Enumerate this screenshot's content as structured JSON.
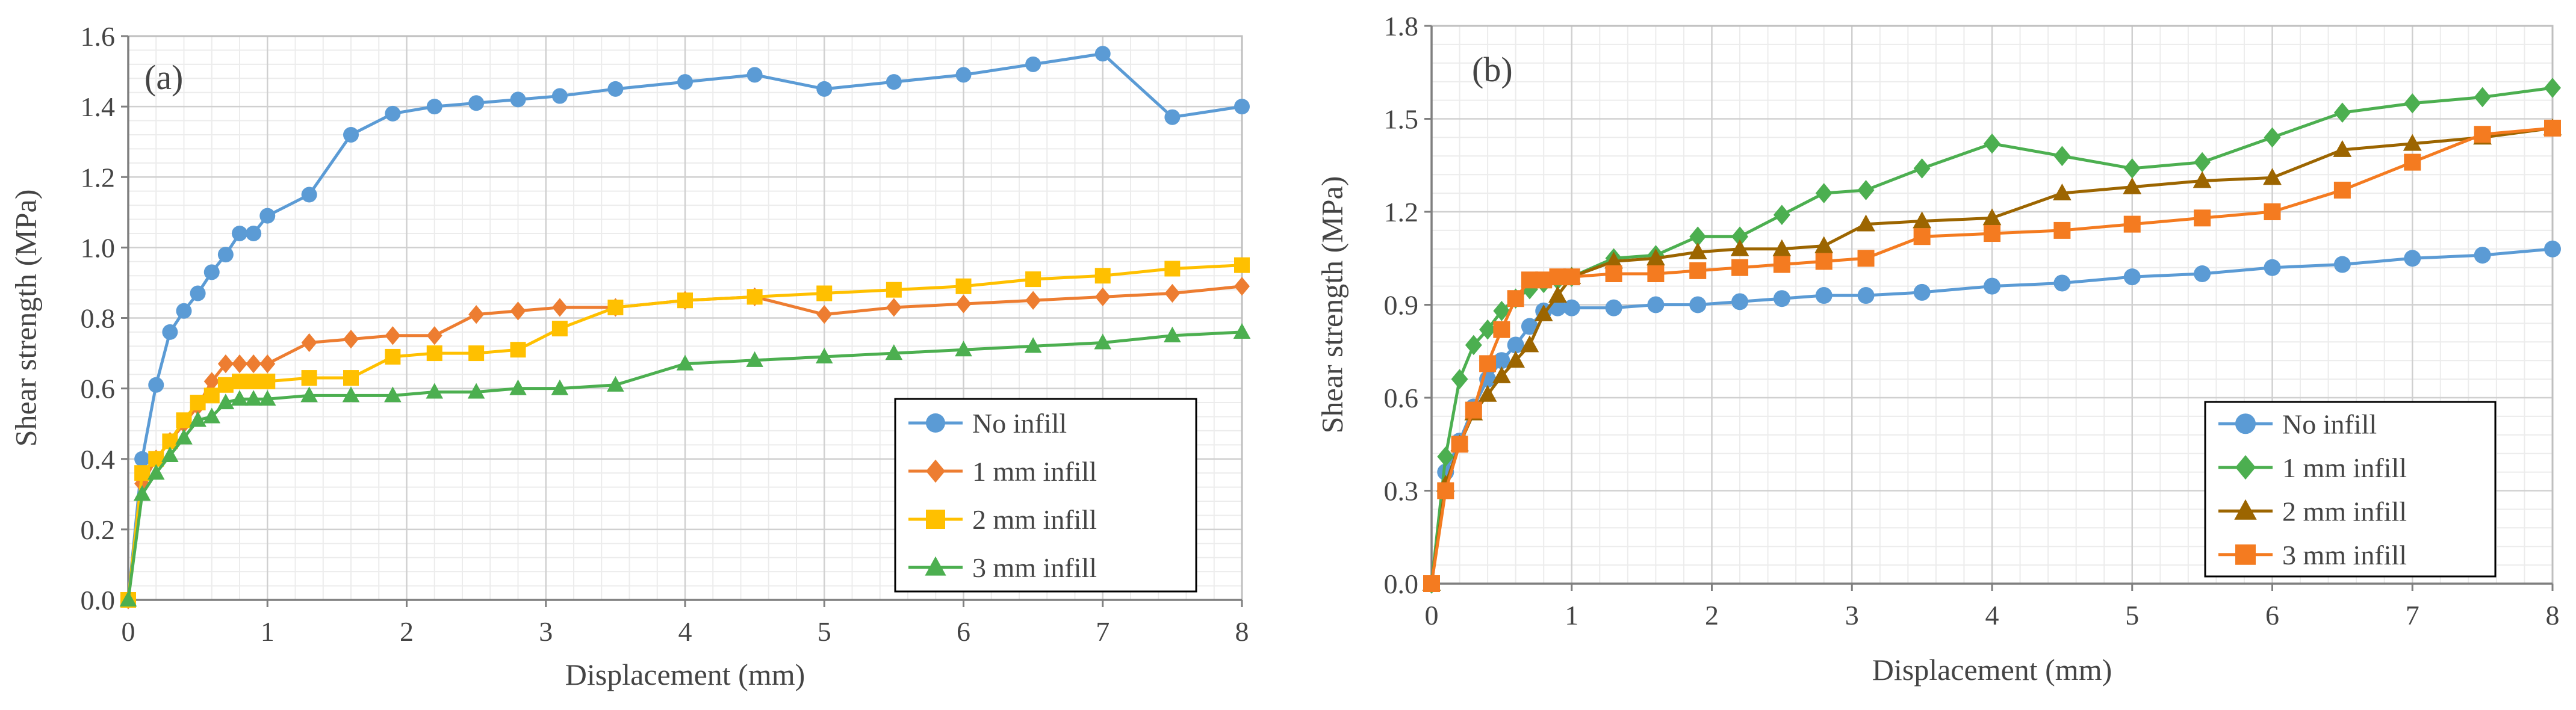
{
  "chart_data": [
    {
      "type": "line",
      "panel_label": "(a)",
      "xlabel": "Displacement (mm)",
      "ylabel": "Shear strength (MPa)",
      "xlim": [
        0,
        8
      ],
      "ylim": [
        0,
        1.6
      ],
      "xticks": [
        "0",
        "1",
        "2",
        "3",
        "4",
        "5",
        "6",
        "7",
        "8"
      ],
      "yticks": [
        "0.0",
        "0.2",
        "0.4",
        "0.6",
        "0.8",
        "1.0",
        "1.2",
        "1.4",
        "1.6"
      ],
      "grid": true,
      "legend_position": "bottom-right",
      "series": [
        {
          "name": "No infill",
          "color": "#5B9BD5",
          "marker": "circle",
          "x": [
            0,
            0.1,
            0.2,
            0.3,
            0.4,
            0.5,
            0.6,
            0.7,
            0.8,
            0.9,
            1.0,
            1.3,
            1.6,
            1.9,
            2.2,
            2.5,
            2.8,
            3.1,
            3.5,
            4.0,
            4.5,
            5.0,
            5.5,
            6.0,
            6.5,
            7.0,
            7.5,
            8.0
          ],
          "y": [
            0,
            0.4,
            0.61,
            0.76,
            0.82,
            0.87,
            0.93,
            0.98,
            1.04,
            1.04,
            1.09,
            1.15,
            1.32,
            1.38,
            1.4,
            1.41,
            1.42,
            1.43,
            1.45,
            1.47,
            1.49,
            1.45,
            1.47,
            1.49,
            1.52,
            1.55,
            1.37,
            1.4
          ]
        },
        {
          "name": "1 mm infill",
          "color": "#ED7D31",
          "marker": "diamond",
          "x": [
            0,
            0.1,
            0.2,
            0.3,
            0.4,
            0.5,
            0.6,
            0.7,
            0.8,
            0.9,
            1.0,
            1.3,
            1.6,
            1.9,
            2.2,
            2.5,
            2.8,
            3.1,
            3.5,
            4.0,
            4.5,
            5.0,
            5.5,
            6.0,
            6.5,
            7.0,
            7.5,
            8.0
          ],
          "y": [
            0,
            0.33,
            0.4,
            0.45,
            0.5,
            0.55,
            0.62,
            0.67,
            0.67,
            0.67,
            0.67,
            0.73,
            0.74,
            0.75,
            0.75,
            0.81,
            0.82,
            0.83,
            0.83,
            0.85,
            0.86,
            0.81,
            0.83,
            0.84,
            0.85,
            0.86,
            0.87,
            0.89
          ]
        },
        {
          "name": "2 mm infill",
          "color": "#FFC000",
          "marker": "square",
          "x": [
            0,
            0.1,
            0.2,
            0.3,
            0.4,
            0.5,
            0.6,
            0.7,
            0.8,
            0.9,
            1.0,
            1.3,
            1.6,
            1.9,
            2.2,
            2.5,
            2.8,
            3.1,
            3.5,
            4.0,
            4.5,
            5.0,
            5.5,
            6.0,
            6.5,
            7.0,
            7.5,
            8.0
          ],
          "y": [
            0,
            0.36,
            0.4,
            0.45,
            0.51,
            0.56,
            0.58,
            0.61,
            0.62,
            0.62,
            0.62,
            0.63,
            0.63,
            0.69,
            0.7,
            0.7,
            0.71,
            0.77,
            0.83,
            0.85,
            0.86,
            0.87,
            0.88,
            0.89,
            0.91,
            0.92,
            0.94,
            0.95
          ]
        },
        {
          "name": "3 mm infill",
          "color": "#4CAF50",
          "marker": "triangle",
          "x": [
            0,
            0.1,
            0.2,
            0.3,
            0.4,
            0.5,
            0.6,
            0.7,
            0.8,
            0.9,
            1.0,
            1.3,
            1.6,
            1.9,
            2.2,
            2.5,
            2.8,
            3.1,
            3.5,
            4.0,
            4.5,
            5.0,
            5.5,
            6.0,
            6.5,
            7.0,
            7.5,
            8.0
          ],
          "y": [
            0,
            0.3,
            0.36,
            0.41,
            0.46,
            0.51,
            0.52,
            0.56,
            0.57,
            0.57,
            0.57,
            0.58,
            0.58,
            0.58,
            0.59,
            0.59,
            0.6,
            0.6,
            0.61,
            0.67,
            0.68,
            0.69,
            0.7,
            0.71,
            0.72,
            0.73,
            0.75,
            0.76
          ]
        }
      ]
    },
    {
      "type": "line",
      "panel_label": "(b)",
      "xlabel": "Displacement (mm)",
      "ylabel": "Shear strength (MPa)",
      "xlim": [
        0,
        8
      ],
      "ylim": [
        0,
        1.8
      ],
      "xticks": [
        "0",
        "1",
        "2",
        "3",
        "4",
        "5",
        "6",
        "7",
        "8"
      ],
      "yticks": [
        "0.0",
        "0.3",
        "0.6",
        "0.9",
        "1.2",
        "1.5",
        "1.8"
      ],
      "grid": true,
      "legend_position": "bottom-right",
      "series": [
        {
          "name": "No infill",
          "color": "#5B9BD5",
          "marker": "circle",
          "x": [
            0,
            0.1,
            0.2,
            0.3,
            0.4,
            0.5,
            0.6,
            0.7,
            0.8,
            0.9,
            1.0,
            1.3,
            1.6,
            1.9,
            2.2,
            2.5,
            2.8,
            3.1,
            3.5,
            4.0,
            4.5,
            5.0,
            5.5,
            6.0,
            6.5,
            7.0,
            7.5,
            8.0
          ],
          "y": [
            0,
            0.36,
            0.46,
            0.57,
            0.66,
            0.72,
            0.77,
            0.83,
            0.88,
            0.89,
            0.89,
            0.89,
            0.9,
            0.9,
            0.91,
            0.92,
            0.93,
            0.93,
            0.94,
            0.96,
            0.97,
            0.99,
            1.0,
            1.02,
            1.03,
            1.05,
            1.06,
            1.08
          ]
        },
        {
          "name": "1 mm infill",
          "color": "#4CAF50",
          "marker": "diamond",
          "x": [
            0,
            0.1,
            0.2,
            0.3,
            0.4,
            0.5,
            0.6,
            0.7,
            0.8,
            0.9,
            1.0,
            1.3,
            1.6,
            1.9,
            2.2,
            2.5,
            2.8,
            3.1,
            3.5,
            4.0,
            4.5,
            5.0,
            5.5,
            6.0,
            6.5,
            7.0,
            7.5,
            8.0
          ],
          "y": [
            0,
            0.41,
            0.66,
            0.77,
            0.82,
            0.88,
            0.92,
            0.95,
            0.97,
            0.98,
            0.99,
            1.05,
            1.06,
            1.12,
            1.12,
            1.19,
            1.26,
            1.27,
            1.34,
            1.42,
            1.38,
            1.34,
            1.36,
            1.44,
            1.52,
            1.55,
            1.57,
            1.6
          ]
        },
        {
          "name": "2 mm infill",
          "color": "#9C6500",
          "marker": "triangle",
          "x": [
            0,
            0.1,
            0.2,
            0.3,
            0.4,
            0.5,
            0.6,
            0.7,
            0.8,
            0.9,
            1.0,
            1.3,
            1.6,
            1.9,
            2.2,
            2.5,
            2.8,
            3.1,
            3.5,
            4.0,
            4.5,
            5.0,
            5.5,
            6.0,
            6.5,
            7.0,
            7.5,
            8.0
          ],
          "y": [
            0,
            0.32,
            0.45,
            0.55,
            0.61,
            0.67,
            0.72,
            0.77,
            0.87,
            0.93,
            0.99,
            1.04,
            1.05,
            1.07,
            1.08,
            1.08,
            1.09,
            1.16,
            1.17,
            1.18,
            1.26,
            1.28,
            1.3,
            1.31,
            1.4,
            1.42,
            1.44,
            1.47
          ]
        },
        {
          "name": "3 mm infill",
          "color": "#F47B20",
          "marker": "square",
          "x": [
            0,
            0.1,
            0.2,
            0.3,
            0.4,
            0.5,
            0.6,
            0.7,
            0.8,
            0.9,
            1.0,
            1.3,
            1.6,
            1.9,
            2.2,
            2.5,
            2.8,
            3.1,
            3.5,
            4.0,
            4.5,
            5.0,
            5.5,
            6.0,
            6.5,
            7.0,
            7.5,
            8.0
          ],
          "y": [
            0,
            0.3,
            0.45,
            0.56,
            0.71,
            0.82,
            0.92,
            0.98,
            0.98,
            0.99,
            0.99,
            1.0,
            1.0,
            1.01,
            1.02,
            1.03,
            1.04,
            1.05,
            1.12,
            1.13,
            1.14,
            1.16,
            1.18,
            1.2,
            1.27,
            1.36,
            1.45,
            1.47
          ]
        }
      ]
    }
  ]
}
